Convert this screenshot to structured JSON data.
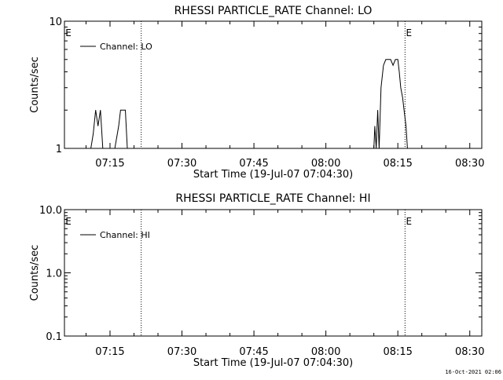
{
  "footer": {
    "timestamp": "16-Oct-2021 02:06"
  },
  "chart_data": [
    {
      "type": "line",
      "title": "RHESSI PARTICLE_RATE Channel: LO",
      "xlabel": "Start Time (19-Jul-07 07:04:30)",
      "ylabel": "Counts/sec",
      "yscale": "log",
      "ylim": [
        1,
        10
      ],
      "yticks": [
        {
          "value": 1,
          "label": "1"
        },
        {
          "value": 10,
          "label": "10"
        }
      ],
      "xlim_min": [
        5.5,
        92.5
      ],
      "xticks": [
        {
          "min": 15,
          "label": "07:15"
        },
        {
          "min": 30,
          "label": "07:30"
        },
        {
          "min": 45,
          "label": "07:45"
        },
        {
          "min": 60,
          "label": "08:00"
        },
        {
          "min": 75,
          "label": "08:15"
        },
        {
          "min": 90,
          "label": "08:30"
        }
      ],
      "legend": {
        "label": "Channel: LO",
        "position": "top-left"
      },
      "event_lines_min": [
        5.5,
        21.5,
        76.5,
        93
      ],
      "event_markers": [
        {
          "min": 5.5,
          "label": "E"
        },
        {
          "min": 76.5,
          "label": "E"
        }
      ],
      "series": [
        {
          "points": [
            [
              5.5,
              1
            ],
            [
              11,
              1
            ],
            [
              11.5,
              1.3
            ],
            [
              12,
              2
            ],
            [
              12.5,
              1.5
            ],
            [
              13,
              2
            ],
            [
              13.5,
              1
            ],
            [
              16,
              1
            ],
            [
              16.8,
              1.5
            ],
            [
              17.2,
              2
            ],
            [
              18.2,
              2
            ],
            [
              18.6,
              1
            ],
            [
              70,
              1
            ],
            [
              70.2,
              1.5
            ],
            [
              70.5,
              1
            ],
            [
              70.8,
              2
            ],
            [
              71.1,
              1
            ],
            [
              71.5,
              3
            ],
            [
              72,
              4.5
            ],
            [
              72.5,
              5
            ],
            [
              73,
              5
            ],
            [
              73.5,
              5
            ],
            [
              74,
              4.5
            ],
            [
              74.5,
              5
            ],
            [
              75,
              5
            ],
            [
              75.3,
              4
            ],
            [
              75.6,
              3
            ],
            [
              76,
              2.5
            ],
            [
              76.3,
              2
            ],
            [
              76.7,
              1.5
            ],
            [
              77,
              1
            ],
            [
              92.5,
              1
            ]
          ]
        }
      ]
    },
    {
      "type": "line",
      "title": "RHESSI PARTICLE_RATE Channel: HI",
      "xlabel": "Start Time (19-Jul-07 07:04:30)",
      "ylabel": "Counts/sec",
      "yscale": "log",
      "ylim": [
        0.1,
        10
      ],
      "yticks": [
        {
          "value": 0.1,
          "label": "0.1"
        },
        {
          "value": 1,
          "label": "1.0"
        },
        {
          "value": 10,
          "label": "10.0"
        }
      ],
      "xlim_min": [
        5.5,
        92.5
      ],
      "xticks": [
        {
          "min": 15,
          "label": "07:15"
        },
        {
          "min": 30,
          "label": "07:30"
        },
        {
          "min": 45,
          "label": "07:45"
        },
        {
          "min": 60,
          "label": "08:00"
        },
        {
          "min": 75,
          "label": "08:15"
        },
        {
          "min": 90,
          "label": "08:30"
        }
      ],
      "legend": {
        "label": "Channel: HI",
        "position": "top-left"
      },
      "event_lines_min": [
        5.5,
        21.5,
        76.5,
        93
      ],
      "event_markers": [
        {
          "min": 5.5,
          "label": "E"
        },
        {
          "min": 76.5,
          "label": "E"
        }
      ],
      "series": [
        {
          "points": []
        }
      ]
    }
  ]
}
